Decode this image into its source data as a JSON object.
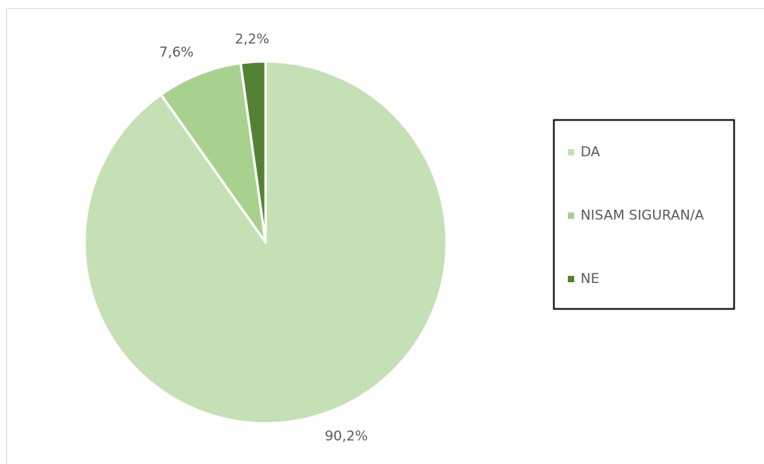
{
  "chart_data": {
    "type": "pie",
    "categories": [
      "DA",
      "NISAM SIGURAN/A",
      "NE"
    ],
    "values": [
      90.2,
      7.6,
      2.2
    ],
    "value_labels": [
      "90,2%",
      "7,6%",
      "2,2%"
    ],
    "colors": [
      "#c5e0b4",
      "#a9d18e",
      "#548235"
    ],
    "legend": "right"
  }
}
